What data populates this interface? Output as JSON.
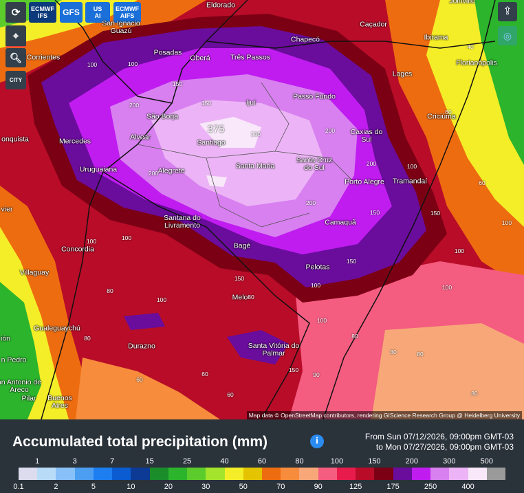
{
  "toolbar": {
    "models": [
      {
        "label": "ECMWF",
        "sub": "IFS"
      },
      {
        "label": "GFS"
      },
      {
        "label": "US",
        "sub": "AI"
      },
      {
        "label": "ECMWF",
        "sub": "AIFS"
      }
    ],
    "city_button": "CITY"
  },
  "map": {
    "cities": [
      "Eldorado",
      "San Ignacio Guazú",
      "Chapecó",
      "Caçador",
      "Ibirama",
      "Joinville",
      "Corrientes",
      "Posadas",
      "Oberá",
      "Três Passos",
      "Florianópolis",
      "Lages",
      "Ijuí",
      "Passo Fundo",
      "São Borja",
      "Criciúma",
      "Caxias do Sul",
      "Mercedes",
      "Alvear",
      "Santiago",
      "onquista",
      "Uruguaiana",
      "Alegrete",
      "Santa Maria",
      "Santa Cruz do Sul",
      "Porto Alegre",
      "Tramandaí",
      "vier",
      "Santana do Livramento",
      "Camaquã",
      "Concordia",
      "Bagé",
      "Pelotas",
      "Villaguay",
      "Melo",
      "Gualeguaychú",
      "ión",
      "Durazno",
      "Santa Vitória do Palmar",
      "n Pedro",
      "an Antonio de Areco",
      "Pilar",
      "Buenos Aires"
    ],
    "contour_labels": [
      "200",
      "100",
      "150",
      "100",
      "150",
      "40",
      "60",
      "100",
      "200",
      "300",
      "200",
      "200",
      "150",
      "200",
      "100",
      "60",
      "100",
      "150",
      "150",
      "100",
      "100",
      "150",
      "80",
      "100",
      "100",
      "80",
      "80",
      "100",
      "80",
      "60",
      "80",
      "60",
      "80",
      "150",
      "100",
      "60",
      "80",
      "90"
    ],
    "peak_label": "375",
    "attribution": "Map data © OpenStreetMap contributors, rendering GIScience Research Group @ Heidelberg University"
  },
  "footer": {
    "title": "Accumulated total precipitation (mm)",
    "from": "From Sun 07/12/2026, 09:00pm GMT-03",
    "to": "to Mon 07/27/2026, 09:00pm GMT-03"
  },
  "legend": {
    "labels": [
      0.1,
      1,
      2,
      3,
      5,
      7,
      10,
      15,
      20,
      25,
      30,
      40,
      50,
      60,
      70,
      80,
      90,
      100,
      125,
      150,
      175,
      200,
      250,
      300,
      400,
      500
    ],
    "colors": [
      "#dcdcee",
      "#b8dcf8",
      "#88c0f8",
      "#4c9ef0",
      "#1c7ef0",
      "#0a5cd0",
      "#0c3a94",
      "#1a8c2a",
      "#2cb42c",
      "#5ccc2c",
      "#a4e42c",
      "#f4ee28",
      "#e4c400",
      "#ee6c10",
      "#f68c3c",
      "#f8a878",
      "#f45c80",
      "#e81c4c",
      "#b80c28",
      "#7c0014",
      "#6a0c9c",
      "#c01cf0",
      "#d880f0",
      "#ecb4f6",
      "#f8e8fa",
      "#9a9a9a"
    ]
  }
}
